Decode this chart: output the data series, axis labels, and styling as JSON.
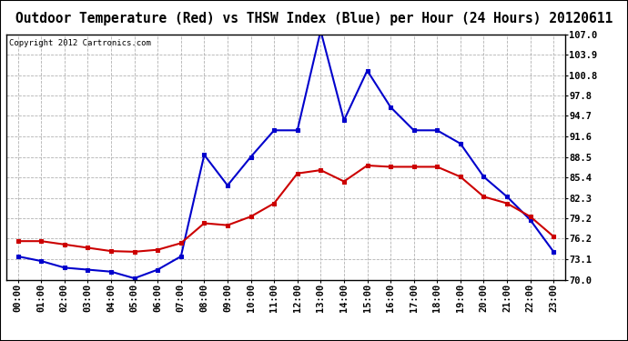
{
  "title": "Outdoor Temperature (Red) vs THSW Index (Blue) per Hour (24 Hours) 20120611",
  "copyright": "Copyright 2012 Cartronics.com",
  "hours": [
    "00:00",
    "01:00",
    "02:00",
    "03:00",
    "04:00",
    "05:00",
    "06:00",
    "07:00",
    "08:00",
    "09:00",
    "10:00",
    "11:00",
    "12:00",
    "13:00",
    "14:00",
    "15:00",
    "16:00",
    "17:00",
    "18:00",
    "19:00",
    "20:00",
    "21:00",
    "22:00",
    "23:00"
  ],
  "red_temp": [
    75.8,
    75.8,
    75.3,
    74.8,
    74.3,
    74.2,
    74.5,
    75.5,
    78.5,
    78.2,
    79.5,
    81.5,
    86.0,
    86.5,
    84.8,
    87.2,
    87.0,
    87.0,
    87.0,
    85.5,
    82.5,
    81.5,
    79.5,
    76.5
  ],
  "blue_thsw": [
    73.5,
    72.8,
    71.8,
    71.5,
    71.2,
    70.2,
    71.5,
    73.5,
    88.8,
    84.2,
    88.5,
    92.5,
    92.5,
    107.5,
    94.0,
    101.5,
    96.0,
    92.5,
    92.5,
    90.5,
    85.5,
    82.5,
    79.0,
    74.2
  ],
  "ylim": [
    70.0,
    107.0
  ],
  "yticks": [
    70.0,
    73.1,
    76.2,
    79.2,
    82.3,
    85.4,
    88.5,
    91.6,
    94.7,
    97.8,
    100.8,
    103.9,
    107.0
  ],
  "red_color": "#cc0000",
  "blue_color": "#0000cc",
  "bg_color": "#ffffff",
  "grid_color": "#aaaaaa",
  "title_fontsize": 10.5,
  "copyright_fontsize": 6.5,
  "tick_fontsize": 7.5
}
